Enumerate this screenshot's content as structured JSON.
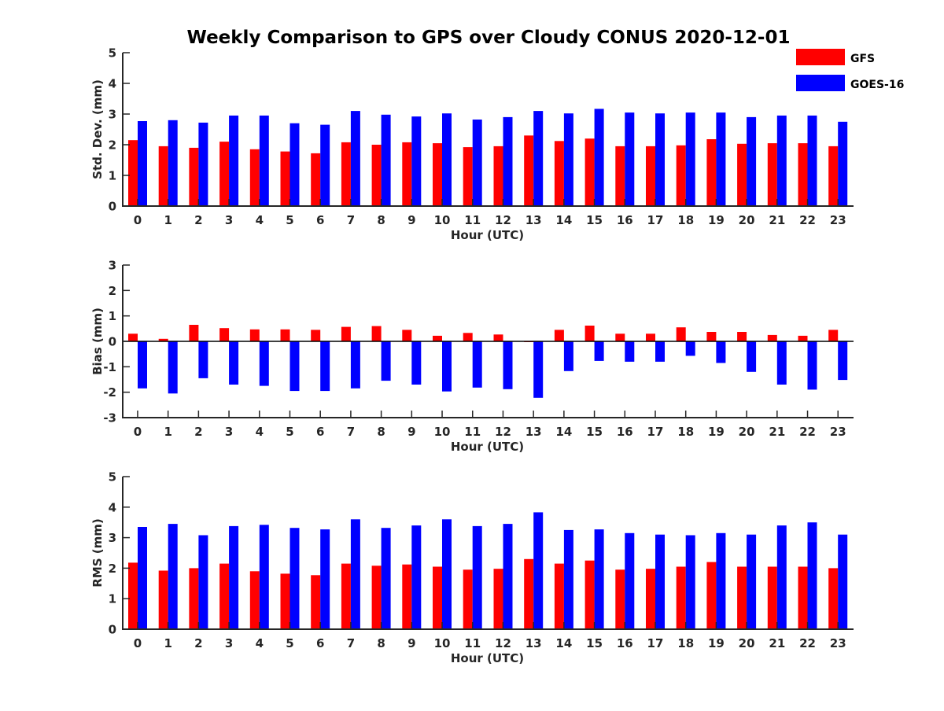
{
  "title": "Weekly Comparison to GPS over Cloudy CONUS 2020-12-01",
  "legend": {
    "placement": "top-right",
    "items": [
      {
        "label": "GFS",
        "color": "#ff0000"
      },
      {
        "label": "GOES-16",
        "color": "#0000ff"
      }
    ]
  },
  "chart_data": [
    {
      "type": "bar",
      "xlabel": "Hour (UTC)",
      "ylabel": "Std. Dev. (mm)",
      "ylim": [
        0,
        5
      ],
      "yticks": [
        "0",
        "1",
        "2",
        "3",
        "4",
        "5"
      ],
      "categories": [
        "0",
        "1",
        "2",
        "3",
        "4",
        "5",
        "6",
        "7",
        "8",
        "9",
        "10",
        "11",
        "12",
        "13",
        "14",
        "15",
        "16",
        "17",
        "18",
        "19",
        "20",
        "21",
        "22",
        "23"
      ],
      "series": [
        {
          "name": "GFS",
          "color": "#ff0000",
          "values": [
            2.15,
            1.95,
            1.9,
            2.1,
            1.85,
            1.78,
            1.72,
            2.08,
            2.0,
            2.08,
            2.05,
            1.92,
            1.95,
            2.3,
            2.12,
            2.2,
            1.95,
            1.95,
            1.98,
            2.18,
            2.03,
            2.05,
            2.05,
            1.95
          ]
        },
        {
          "name": "GOES-16",
          "color": "#0000ff",
          "values": [
            2.77,
            2.8,
            2.72,
            2.95,
            2.95,
            2.7,
            2.65,
            3.1,
            2.98,
            2.92,
            3.02,
            2.82,
            2.9,
            3.1,
            3.02,
            3.17,
            3.05,
            3.02,
            3.05,
            3.05,
            2.9,
            2.95,
            2.95,
            2.75
          ]
        }
      ]
    },
    {
      "type": "bar",
      "xlabel": "Hour (UTC)",
      "ylabel": "Bias (mm)",
      "ylim": [
        -3,
        3
      ],
      "yticks": [
        "-3",
        "-2",
        "-1",
        "0",
        "1",
        "2",
        "3"
      ],
      "zero_line": true,
      "categories": [
        "0",
        "1",
        "2",
        "3",
        "4",
        "5",
        "6",
        "7",
        "8",
        "9",
        "10",
        "11",
        "12",
        "13",
        "14",
        "15",
        "16",
        "17",
        "18",
        "19",
        "20",
        "21",
        "22",
        "23"
      ],
      "series": [
        {
          "name": "GFS",
          "color": "#ff0000",
          "values": [
            0.3,
            0.1,
            0.65,
            0.52,
            0.47,
            0.47,
            0.45,
            0.57,
            0.6,
            0.45,
            0.22,
            0.33,
            0.27,
            -0.03,
            0.45,
            0.62,
            0.3,
            0.3,
            0.55,
            0.37,
            0.37,
            0.25,
            0.22,
            0.45
          ]
        },
        {
          "name": "GOES-16",
          "color": "#0000ff",
          "values": [
            -1.85,
            -2.05,
            -1.45,
            -1.7,
            -1.75,
            -1.95,
            -1.95,
            -1.85,
            -1.55,
            -1.7,
            -1.97,
            -1.82,
            -1.88,
            -2.22,
            -1.17,
            -0.77,
            -0.8,
            -0.8,
            -0.57,
            -0.85,
            -1.2,
            -1.7,
            -1.9,
            -1.52
          ]
        }
      ]
    },
    {
      "type": "bar",
      "xlabel": "Hour (UTC)",
      "ylabel": "RMS (mm)",
      "ylim": [
        0,
        5
      ],
      "yticks": [
        "0",
        "1",
        "2",
        "3",
        "4",
        "5"
      ],
      "categories": [
        "0",
        "1",
        "2",
        "3",
        "4",
        "5",
        "6",
        "7",
        "8",
        "9",
        "10",
        "11",
        "12",
        "13",
        "14",
        "15",
        "16",
        "17",
        "18",
        "19",
        "20",
        "21",
        "22",
        "23"
      ],
      "series": [
        {
          "name": "GFS",
          "color": "#ff0000",
          "values": [
            2.18,
            1.92,
            2.0,
            2.15,
            1.9,
            1.82,
            1.77,
            2.15,
            2.08,
            2.12,
            2.05,
            1.95,
            1.98,
            2.3,
            2.15,
            2.25,
            1.95,
            1.98,
            2.05,
            2.2,
            2.05,
            2.05,
            2.05,
            2.0
          ]
        },
        {
          "name": "GOES-16",
          "color": "#0000ff",
          "values": [
            3.35,
            3.45,
            3.08,
            3.38,
            3.42,
            3.32,
            3.27,
            3.6,
            3.32,
            3.4,
            3.6,
            3.38,
            3.45,
            3.83,
            3.25,
            3.27,
            3.15,
            3.1,
            3.08,
            3.15,
            3.1,
            3.4,
            3.5,
            3.1
          ]
        }
      ]
    }
  ]
}
